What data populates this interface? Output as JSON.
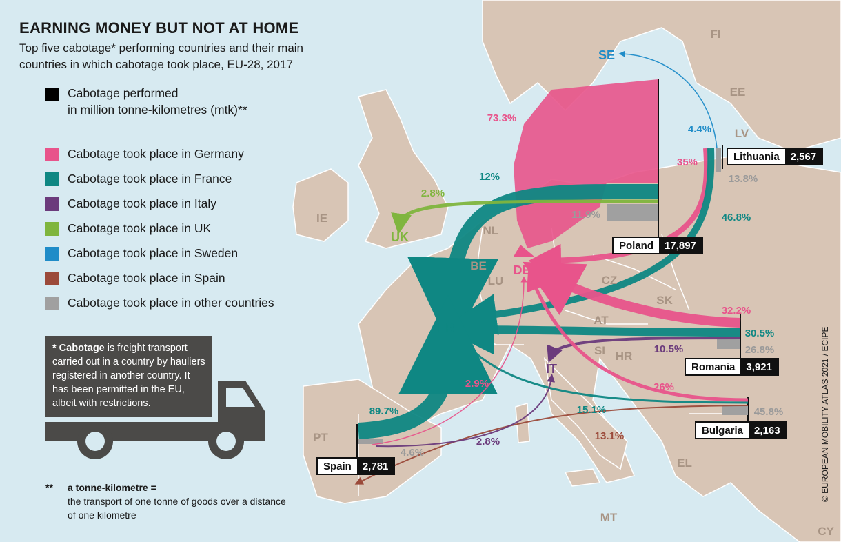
{
  "title": "EARNING MONEY BUT NOT AT HOME",
  "subtitle": "Top five cabotage* performing countries and their main countries in which cabotage took place, EU-28, 2017",
  "legend": {
    "performed": {
      "line1": "Cabotage performed",
      "line2": "in million tonne-kilometres (mtk)**",
      "color": "#000000"
    },
    "items": [
      {
        "label": "Cabotage took place in Germany",
        "color": "#e8548b"
      },
      {
        "label": "Cabotage took place in France",
        "color": "#0f8783"
      },
      {
        "label": "Cabotage took place in Italy",
        "color": "#6b3b7c"
      },
      {
        "label": "Cabotage took place in UK",
        "color": "#7fb53e"
      },
      {
        "label": "Cabotage took place in Sweden",
        "color": "#1f8cc8"
      },
      {
        "label": "Cabotage took place in Spain",
        "color": "#9b4a3a"
      },
      {
        "label": "Cabotage took place in other countries",
        "color": "#a0a0a0"
      }
    ]
  },
  "note": {
    "bold": "* Cabotage",
    "text": " is freight transport carried out in a country by hauliers registered in another country. It has been permitted in the EU, albeit with restrictions."
  },
  "footnote": {
    "marker": "**",
    "head": "a tonne-kilometre =",
    "body": "the transport of one tonne of goods over a distance of one kilometre"
  },
  "credit": "© EUROPEAN MOBILITY ATLAS 2021 / ECIPE",
  "performers": [
    {
      "name": "Poland",
      "mtk": "17,897"
    },
    {
      "name": "Lithuania",
      "mtk": "2,567"
    },
    {
      "name": "Romania",
      "mtk": "3,921"
    },
    {
      "name": "Bulgaria",
      "mtk": "2,163"
    },
    {
      "name": "Spain",
      "mtk": "2,781"
    }
  ],
  "flows": [
    {
      "from": "Poland",
      "to": "DE",
      "share": "73.3%",
      "color": "#e8548b"
    },
    {
      "from": "Poland",
      "to": "FR",
      "share": "12%",
      "color": "#0f8783"
    },
    {
      "from": "Poland",
      "to": "UK",
      "share": "2.8%",
      "color": "#7fb53e"
    },
    {
      "from": "Poland",
      "to": "other",
      "share": "11.9%",
      "color": "#a0a0a0"
    },
    {
      "from": "Lithuania",
      "to": "SE",
      "share": "4.4%",
      "color": "#1f8cc8"
    },
    {
      "from": "Lithuania",
      "to": "DE",
      "share": "35%",
      "color": "#e8548b"
    },
    {
      "from": "Lithuania",
      "to": "FR",
      "share": "46.8%",
      "color": "#0f8783"
    },
    {
      "from": "Lithuania",
      "to": "other",
      "share": "13.8%",
      "color": "#a0a0a0"
    },
    {
      "from": "Romania",
      "to": "DE",
      "share": "32.2%",
      "color": "#e8548b"
    },
    {
      "from": "Romania",
      "to": "FR",
      "share": "30.5%",
      "color": "#0f8783"
    },
    {
      "from": "Romania",
      "to": "IT",
      "share": "10.5%",
      "color": "#6b3b7c"
    },
    {
      "from": "Romania",
      "to": "other",
      "share": "26.8%",
      "color": "#a0a0a0"
    },
    {
      "from": "Bulgaria",
      "to": "DE",
      "share": "26%",
      "color": "#e8548b"
    },
    {
      "from": "Bulgaria",
      "to": "FR",
      "share": "15.1%",
      "color": "#0f8783"
    },
    {
      "from": "Bulgaria",
      "to": "ES",
      "share": "13.1%",
      "color": "#9b4a3a"
    },
    {
      "from": "Bulgaria",
      "to": "other",
      "share": "45.8%",
      "color": "#a0a0a0"
    },
    {
      "from": "Spain",
      "to": "FR",
      "share": "89.7%",
      "color": "#0f8783"
    },
    {
      "from": "Spain",
      "to": "DE",
      "share": "2.9%",
      "color": "#e8548b"
    },
    {
      "from": "Spain",
      "to": "IT",
      "share": "2.8%",
      "color": "#6b3b7c"
    },
    {
      "from": "Spain",
      "to": "other",
      "share": "4.6%",
      "color": "#a0a0a0"
    }
  ],
  "destinations": [
    {
      "code": "SE",
      "color": "#1f8cc8"
    },
    {
      "code": "UK",
      "color": "#7fb53e"
    },
    {
      "code": "DE",
      "color": "#e8548b"
    },
    {
      "code": "FR",
      "color": "#0f8783"
    },
    {
      "code": "IT",
      "color": "#6b3b7c"
    }
  ],
  "country_labels": [
    "FI",
    "EE",
    "LV",
    "IE",
    "NL",
    "BE",
    "LU",
    "CZ",
    "SK",
    "AT",
    "SI",
    "HR",
    "PT",
    "EL",
    "MT",
    "CY"
  ]
}
